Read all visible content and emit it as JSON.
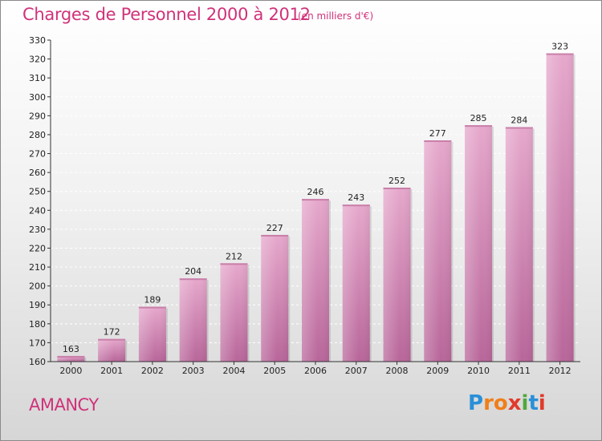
{
  "header": {
    "title": "Charges de Personnel 2000 à 2012",
    "subtitle": "(en milliers d'€)"
  },
  "footer": {
    "city": "AMANCY",
    "brand": [
      "P",
      "r",
      "o",
      "x",
      "i",
      "t",
      "i"
    ],
    "brand_colors": [
      "#2a8fd8",
      "#f07f1a",
      "#f07f1a",
      "#e13a2c",
      "#4fa83d",
      "#2a8fd8",
      "#e13a2c"
    ]
  },
  "colors": {
    "accent": "#d0327a",
    "bar_top": "#e6a8cc",
    "bar_bottom": "#b8669a",
    "grid": "#ffffff"
  },
  "chart_data": {
    "type": "bar",
    "categories": [
      "2000",
      "2001",
      "2002",
      "2003",
      "2004",
      "2005",
      "2006",
      "2007",
      "2008",
      "2009",
      "2010",
      "2011",
      "2012"
    ],
    "values": [
      163,
      172,
      189,
      204,
      212,
      227,
      246,
      243,
      252,
      277,
      285,
      284,
      323
    ],
    "data_labels": [
      "163",
      "172",
      "189",
      "204",
      "212",
      "227",
      "246",
      "243",
      "252",
      "277",
      "285",
      "284",
      "323"
    ],
    "yticks": [
      "160",
      "170",
      "180",
      "190",
      "200",
      "210",
      "220",
      "230",
      "240",
      "250",
      "260",
      "270",
      "280",
      "290",
      "300",
      "310",
      "320",
      "330"
    ],
    "ylim": [
      160,
      330
    ],
    "grid": true,
    "xlabel": "",
    "ylabel": ""
  }
}
